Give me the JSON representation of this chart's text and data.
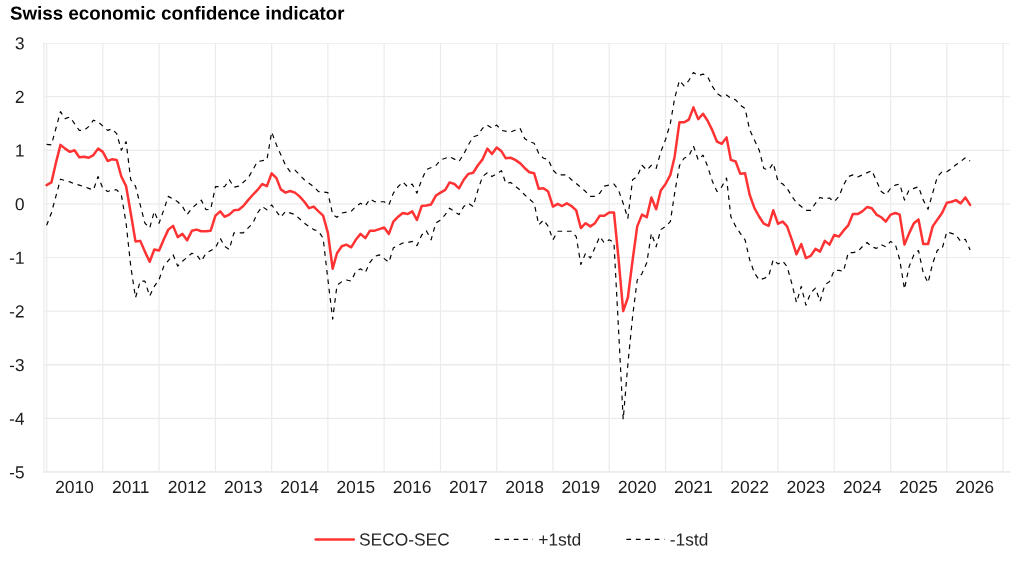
{
  "chart_data": {
    "type": "line",
    "title": "Swiss economic confidence indicator",
    "x": [
      "2010-01",
      "2010-02",
      "2010-03",
      "2010-04",
      "2010-05",
      "2010-06",
      "2010-07",
      "2010-08",
      "2010-09",
      "2010-10",
      "2010-11",
      "2010-12",
      "2011-01",
      "2011-02",
      "2011-03",
      "2011-04",
      "2011-05",
      "2011-06",
      "2011-07",
      "2011-08",
      "2011-09",
      "2011-10",
      "2011-11",
      "2011-12",
      "2012-01",
      "2012-02",
      "2012-03",
      "2012-04",
      "2012-05",
      "2012-06",
      "2012-07",
      "2012-08",
      "2012-09",
      "2012-10",
      "2012-11",
      "2012-12",
      "2013-01",
      "2013-02",
      "2013-03",
      "2013-04",
      "2013-05",
      "2013-06",
      "2013-07",
      "2013-08",
      "2013-09",
      "2013-10",
      "2013-11",
      "2013-12",
      "2014-01",
      "2014-02",
      "2014-03",
      "2014-04",
      "2014-05",
      "2014-06",
      "2014-07",
      "2014-08",
      "2014-09",
      "2014-10",
      "2014-11",
      "2014-12",
      "2015-01",
      "2015-02",
      "2015-03",
      "2015-04",
      "2015-05",
      "2015-06",
      "2015-07",
      "2015-08",
      "2015-09",
      "2015-10",
      "2015-11",
      "2015-12",
      "2016-01",
      "2016-02",
      "2016-03",
      "2016-04",
      "2016-05",
      "2016-06",
      "2016-07",
      "2016-08",
      "2016-09",
      "2016-10",
      "2016-11",
      "2016-12",
      "2017-01",
      "2017-02",
      "2017-03",
      "2017-04",
      "2017-05",
      "2017-06",
      "2017-07",
      "2017-08",
      "2017-09",
      "2017-10",
      "2017-11",
      "2017-12",
      "2018-01",
      "2018-02",
      "2018-03",
      "2018-04",
      "2018-05",
      "2018-06",
      "2018-07",
      "2018-08",
      "2018-09",
      "2018-10",
      "2018-11",
      "2018-12",
      "2019-01",
      "2019-02",
      "2019-03",
      "2019-04",
      "2019-05",
      "2019-06",
      "2019-07",
      "2019-08",
      "2019-09",
      "2019-10",
      "2019-11",
      "2019-12",
      "2020-01",
      "2020-02",
      "2020-03",
      "2020-04",
      "2020-05",
      "2020-06",
      "2020-07",
      "2020-08",
      "2020-09",
      "2020-10",
      "2020-11",
      "2020-12",
      "2021-01",
      "2021-02",
      "2021-03",
      "2021-04",
      "2021-05",
      "2021-06",
      "2021-07",
      "2021-08",
      "2021-09",
      "2021-10",
      "2021-11",
      "2021-12",
      "2022-01",
      "2022-02",
      "2022-03",
      "2022-04",
      "2022-05",
      "2022-06",
      "2022-07",
      "2022-08",
      "2022-09",
      "2022-10",
      "2022-11",
      "2022-12",
      "2023-01",
      "2023-02",
      "2023-03",
      "2023-04",
      "2023-05",
      "2023-06",
      "2023-07",
      "2023-08",
      "2023-09",
      "2023-10",
      "2023-11",
      "2023-12",
      "2024-01",
      "2024-02",
      "2024-03",
      "2024-04",
      "2024-05",
      "2024-06",
      "2024-07",
      "2024-08",
      "2024-09",
      "2024-10",
      "2024-11",
      "2024-12",
      "2025-01",
      "2025-02",
      "2025-03",
      "2025-04",
      "2025-05",
      "2025-06",
      "2025-07",
      "2025-08",
      "2025-09",
      "2025-10",
      "2025-11",
      "2025-12",
      "2026-01",
      "2026-02",
      "2026-03",
      "2026-04",
      "2026-05",
      "2026-06"
    ],
    "series": [
      {
        "name": "SECO-SEC",
        "color": "#ff3333",
        "line_style": "solid",
        "values": [
          0.35,
          0.4,
          0.75,
          1.1,
          1.03,
          0.97,
          1.0,
          0.87,
          0.88,
          0.86,
          0.91,
          1.03,
          0.97,
          0.8,
          0.83,
          0.82,
          0.51,
          0.33,
          -0.17,
          -0.7,
          -0.69,
          -0.89,
          -1.08,
          -0.85,
          -0.87,
          -0.66,
          -0.48,
          -0.41,
          -0.62,
          -0.56,
          -0.68,
          -0.5,
          -0.48,
          -0.51,
          -0.51,
          -0.5,
          -0.22,
          -0.14,
          -0.24,
          -0.2,
          -0.12,
          -0.11,
          -0.04,
          0.07,
          0.17,
          0.26,
          0.37,
          0.33,
          0.57,
          0.48,
          0.27,
          0.21,
          0.24,
          0.21,
          0.14,
          0.04,
          -0.08,
          -0.05,
          -0.14,
          -0.22,
          -0.54,
          -1.21,
          -0.92,
          -0.79,
          -0.76,
          -0.81,
          -0.67,
          -0.56,
          -0.64,
          -0.5,
          -0.5,
          -0.47,
          -0.44,
          -0.56,
          -0.33,
          -0.24,
          -0.17,
          -0.19,
          -0.14,
          -0.3,
          -0.04,
          -0.03,
          -0.01,
          0.15,
          0.21,
          0.26,
          0.4,
          0.37,
          0.29,
          0.45,
          0.56,
          0.58,
          0.72,
          0.83,
          1.03,
          0.93,
          1.05,
          0.98,
          0.85,
          0.86,
          0.82,
          0.76,
          0.67,
          0.59,
          0.57,
          0.28,
          0.29,
          0.23,
          -0.05,
          0.0,
          -0.04,
          0.01,
          -0.04,
          -0.12,
          -0.45,
          -0.36,
          -0.42,
          -0.36,
          -0.22,
          -0.22,
          -0.16,
          -0.16,
          -1.0,
          -2.0,
          -1.75,
          -1.05,
          -0.42,
          -0.2,
          -0.25,
          0.12,
          -0.1,
          0.25,
          0.37,
          0.54,
          0.88,
          1.52,
          1.52,
          1.57,
          1.8,
          1.58,
          1.68,
          1.55,
          1.37,
          1.16,
          1.12,
          1.24,
          0.82,
          0.79,
          0.56,
          0.57,
          0.17,
          -0.08,
          -0.24,
          -0.37,
          -0.41,
          -0.12,
          -0.37,
          -0.33,
          -0.42,
          -0.67,
          -0.94,
          -0.75,
          -1.01,
          -0.97,
          -0.84,
          -0.89,
          -0.69,
          -0.76,
          -0.58,
          -0.61,
          -0.5,
          -0.4,
          -0.19,
          -0.19,
          -0.14,
          -0.06,
          -0.08,
          -0.2,
          -0.25,
          -0.33,
          -0.2,
          -0.17,
          -0.2,
          -0.76,
          -0.55,
          -0.36,
          -0.29,
          -0.75,
          -0.75,
          -0.42,
          -0.29,
          -0.17,
          0.02,
          0.04,
          0.07,
          0.01,
          0.12,
          -0.02
        ]
      },
      {
        "name": "+1std",
        "color": "#000000",
        "line_style": "dashed",
        "x": [
          "2010-01",
          "2010-02",
          "2010-04",
          "2010-05",
          "2010-06",
          "2010-08",
          "2010-09",
          "2010-10",
          "2010-11",
          "2010-12",
          "2011-02",
          "2011-03",
          "2011-04",
          "2011-05",
          "2011-06",
          "2011-07",
          "2011-08",
          "2011-10",
          "2011-11",
          "2011-12",
          "2012-01",
          "2012-02",
          "2012-03",
          "2012-05",
          "2012-06",
          "2012-07",
          "2012-08",
          "2012-10",
          "2012-11",
          "2012-12",
          "2013-01",
          "2013-03",
          "2013-04",
          "2013-05",
          "2013-06",
          "2013-08",
          "2013-10",
          "2013-12",
          "2014-01",
          "2014-02",
          "2014-04",
          "2014-05",
          "2014-06",
          "2014-08",
          "2014-10",
          "2014-11",
          "2015-01",
          "2015-02",
          "2015-03",
          "2015-04",
          "2015-06",
          "2015-07",
          "2015-08",
          "2015-09",
          "2015-10",
          "2015-11",
          "2016-01",
          "2016-02",
          "2016-03",
          "2016-04",
          "2016-05",
          "2016-06",
          "2016-07",
          "2016-08",
          "2016-09",
          "2016-10",
          "2016-12",
          "2017-01",
          "2017-02",
          "2017-03",
          "2017-05",
          "2017-06",
          "2017-07",
          "2017-08",
          "2017-09",
          "2017-10",
          "2017-11",
          "2017-12",
          "2018-01",
          "2018-02",
          "2018-04",
          "2018-06",
          "2018-07",
          "2018-08",
          "2018-09",
          "2018-10",
          "2018-11",
          "2018-12",
          "2019-01",
          "2019-02",
          "2019-04",
          "2019-05",
          "2019-06",
          "2019-08",
          "2019-09",
          "2019-10",
          "2019-11",
          "2019-12",
          "2020-02",
          "2020-03",
          "2020-04",
          "2020-05",
          "2020-06",
          "2020-07",
          "2020-08",
          "2020-09",
          "2020-10",
          "2020-11",
          "2020-12",
          "2021-01",
          "2021-02",
          "2021-03",
          "2021-04",
          "2021-05",
          "2021-06",
          "2021-07",
          "2021-08",
          "2021-09",
          "2021-10",
          "2021-11",
          "2021-12",
          "2022-01",
          "2022-02",
          "2022-03",
          "2022-04",
          "2022-05",
          "2022-06",
          "2022-07",
          "2022-08",
          "2022-09",
          "2022-10",
          "2022-11",
          "2022-12",
          "2023-01",
          "2023-02",
          "2023-03",
          "2023-04",
          "2023-05",
          "2023-06",
          "2023-07",
          "2023-08",
          "2023-09",
          "2023-10",
          "2023-11",
          "2023-12",
          "2024-01",
          "2024-02",
          "2024-03",
          "2024-04",
          "2024-05",
          "2024-06",
          "2024-07",
          "2024-09",
          "2024-10",
          "2024-11",
          "2024-12",
          "2025-01",
          "2025-02",
          "2025-03",
          "2025-04",
          "2025-05",
          "2025-06",
          "2025-07",
          "2025-08",
          "2025-09",
          "2025-10",
          "2025-11",
          "2025-12",
          "2026-01",
          "2026-02",
          "2026-03",
          "2026-04",
          "2026-05",
          "2026-06"
        ],
        "values": [
          1.11,
          1.1,
          1.72,
          1.59,
          1.62,
          1.37,
          1.37,
          1.44,
          1.56,
          1.53,
          1.37,
          1.4,
          1.31,
          1.0,
          1.16,
          0.45,
          0.33,
          -0.36,
          -0.45,
          -0.14,
          -0.36,
          -0.11,
          0.14,
          0.04,
          -0.05,
          -0.2,
          -0.08,
          0.07,
          -0.11,
          -0.1,
          0.32,
          0.32,
          0.45,
          0.31,
          0.33,
          0.48,
          0.79,
          0.82,
          1.34,
          1.1,
          0.72,
          0.6,
          0.63,
          0.45,
          0.32,
          0.23,
          0.21,
          -0.2,
          -0.25,
          -0.17,
          -0.14,
          -0.05,
          0.01,
          -0.04,
          0.09,
          0.04,
          0.04,
          -0.02,
          0.2,
          0.32,
          0.41,
          0.32,
          0.37,
          0.2,
          0.45,
          0.64,
          0.71,
          0.82,
          0.85,
          0.88,
          0.79,
          0.93,
          1.1,
          1.25,
          1.28,
          1.41,
          1.47,
          1.41,
          1.47,
          1.37,
          1.34,
          1.41,
          1.22,
          1.16,
          1.13,
          0.94,
          0.85,
          0.83,
          0.63,
          0.54,
          0.54,
          0.45,
          0.38,
          0.23,
          0.14,
          0.14,
          0.2,
          0.33,
          0.37,
          0.26,
          0.01,
          -0.27,
          0.45,
          0.51,
          0.72,
          0.63,
          0.72,
          0.66,
          0.97,
          1.2,
          1.5,
          1.97,
          2.3,
          2.2,
          2.3,
          2.45,
          2.39,
          2.42,
          2.37,
          2.19,
          2.06,
          2.0,
          2.03,
          1.97,
          1.94,
          1.84,
          1.78,
          1.38,
          1.19,
          1.0,
          0.66,
          0.63,
          0.76,
          0.42,
          0.37,
          0.29,
          0.14,
          0.02,
          -0.05,
          -0.12,
          -0.12,
          0.01,
          0.12,
          0.09,
          0.11,
          0.04,
          0.14,
          0.35,
          0.51,
          0.54,
          0.5,
          0.54,
          0.62,
          0.43,
          0.23,
          0.17,
          0.29,
          0.35,
          0.37,
          0.07,
          0.26,
          0.29,
          0.32,
          0.07,
          -0.1,
          0.2,
          0.51,
          0.6,
          0.6,
          0.66,
          0.73,
          0.79,
          0.86,
          0.8
        ]
      },
      {
        "name": "-1std",
        "color": "#000000",
        "line_style": "dashed",
        "x": [
          "2010-01",
          "2010-02",
          "2010-04",
          "2010-06",
          "2010-07",
          "2010-08",
          "2010-10",
          "2010-11",
          "2010-12",
          "2011-01",
          "2011-02",
          "2011-03",
          "2011-04",
          "2011-05",
          "2011-06",
          "2011-07",
          "2011-08",
          "2011-09",
          "2011-10",
          "2011-11",
          "2011-12",
          "2012-01",
          "2012-02",
          "2012-04",
          "2012-05",
          "2012-06",
          "2012-08",
          "2012-09",
          "2012-10",
          "2012-11",
          "2013-01",
          "2013-02",
          "2013-03",
          "2013-04",
          "2013-05",
          "2013-07",
          "2013-09",
          "2013-10",
          "2013-11",
          "2013-12",
          "2014-01",
          "2014-03",
          "2014-04",
          "2014-06",
          "2014-08",
          "2014-10",
          "2014-11",
          "2014-12",
          "2015-01",
          "2015-02",
          "2015-03",
          "2015-04",
          "2015-05",
          "2015-06",
          "2015-07",
          "2015-08",
          "2015-09",
          "2015-10",
          "2015-11",
          "2015-12",
          "2016-02",
          "2016-03",
          "2016-05",
          "2016-06",
          "2016-07",
          "2016-08",
          "2016-09",
          "2016-10",
          "2016-11",
          "2016-12",
          "2017-01",
          "2017-02",
          "2017-03",
          "2017-05",
          "2017-06",
          "2017-07",
          "2017-08",
          "2017-09",
          "2017-10",
          "2017-11",
          "2017-12",
          "2018-02",
          "2018-03",
          "2018-04",
          "2018-06",
          "2018-07",
          "2018-09",
          "2018-10",
          "2018-11",
          "2018-12",
          "2019-01",
          "2019-02",
          "2019-03",
          "2019-05",
          "2019-06",
          "2019-07",
          "2019-08",
          "2019-09",
          "2019-11",
          "2019-12",
          "2020-01",
          "2020-02",
          "2020-03",
          "2020-04",
          "2020-05",
          "2020-06",
          "2020-07",
          "2020-08",
          "2020-09",
          "2020-10",
          "2020-11",
          "2020-12",
          "2021-01",
          "2021-02",
          "2021-03",
          "2021-04",
          "2021-05",
          "2021-06",
          "2021-07",
          "2021-08",
          "2021-09",
          "2021-10",
          "2021-11",
          "2021-12",
          "2022-01",
          "2022-02",
          "2022-03",
          "2022-04",
          "2022-05",
          "2022-06",
          "2022-07",
          "2022-08",
          "2022-09",
          "2022-10",
          "2022-11",
          "2022-12",
          "2023-01",
          "2023-02",
          "2023-03",
          "2023-04",
          "2023-05",
          "2023-06",
          "2023-07",
          "2023-08",
          "2023-09",
          "2023-10",
          "2023-11",
          "2023-12",
          "2024-01",
          "2024-02",
          "2024-03",
          "2024-04",
          "2024-05",
          "2024-06",
          "2024-07",
          "2024-08",
          "2024-09",
          "2024-10",
          "2024-11",
          "2024-12",
          "2025-01",
          "2025-02",
          "2025-03",
          "2025-04",
          "2025-05",
          "2025-06",
          "2025-07",
          "2025-08",
          "2025-09",
          "2025-10",
          "2025-11",
          "2025-12",
          "2026-01",
          "2026-02",
          "2026-03",
          "2026-04",
          "2026-05",
          "2026-06"
        ],
        "values": [
          -0.4,
          -0.17,
          0.46,
          0.41,
          0.37,
          0.35,
          0.29,
          0.26,
          0.51,
          0.29,
          0.23,
          0.26,
          0.26,
          0.17,
          -0.36,
          -1.16,
          -1.75,
          -1.44,
          -1.44,
          -1.72,
          -1.54,
          -1.41,
          -1.16,
          -0.95,
          -1.16,
          -1.07,
          -0.92,
          -0.95,
          -1.07,
          -0.92,
          -0.82,
          -0.64,
          -0.79,
          -0.85,
          -0.54,
          -0.54,
          -0.36,
          -0.17,
          -0.05,
          -0.11,
          -0.02,
          -0.25,
          -0.14,
          -0.2,
          -0.36,
          -0.48,
          -0.51,
          -0.64,
          -1.41,
          -2.15,
          -1.52,
          -1.45,
          -1.42,
          -1.44,
          -1.26,
          -1.21,
          -1.28,
          -1.09,
          -0.98,
          -0.95,
          -1.09,
          -0.82,
          -0.73,
          -0.72,
          -0.7,
          -0.78,
          -0.58,
          -0.5,
          -0.67,
          -0.36,
          -0.3,
          -0.2,
          -0.08,
          -0.2,
          -0.05,
          0.01,
          -0.05,
          0.26,
          0.51,
          0.58,
          0.51,
          0.62,
          0.38,
          0.4,
          0.26,
          0.17,
          0.01,
          -0.39,
          -0.3,
          -0.42,
          -0.67,
          -0.51,
          -0.51,
          -0.51,
          -0.61,
          -1.13,
          -0.92,
          -1.01,
          -0.61,
          -0.73,
          -0.67,
          -0.72,
          -2.3,
          -4.02,
          -3.0,
          -2.1,
          -1.42,
          -1.3,
          -1.1,
          -0.55,
          -0.8,
          -0.48,
          -0.42,
          -0.33,
          0.2,
          0.71,
          0.85,
          0.89,
          1.08,
          0.82,
          0.91,
          0.7,
          0.42,
          0.23,
          0.32,
          0.48,
          -0.24,
          -0.42,
          -0.55,
          -0.67,
          -1.04,
          -1.29,
          -1.42,
          -1.39,
          -1.35,
          -1.04,
          -1.12,
          -1.07,
          -1.17,
          -1.49,
          -1.84,
          -1.54,
          -1.89,
          -1.66,
          -1.57,
          -1.82,
          -1.51,
          -1.45,
          -1.24,
          -1.24,
          -1.26,
          -0.91,
          -0.91,
          -0.89,
          -0.8,
          -0.72,
          -0.8,
          -0.83,
          -0.76,
          -0.8,
          -0.7,
          -0.76,
          -1.04,
          -1.59,
          -1.17,
          -0.95,
          -0.87,
          -1.29,
          -1.47,
          -1.11,
          -0.86,
          -0.84,
          -0.52,
          -0.55,
          -0.58,
          -0.7,
          -0.66,
          -0.86
        ]
      }
    ],
    "xlim": [
      "2009-12-15",
      "2027-02-15"
    ],
    "xticks": [
      {
        "value": "2010-01-01",
        "label": null
      },
      {
        "value": "2010-07-01",
        "label": "2010"
      },
      {
        "value": "2011-01-01",
        "label": null
      },
      {
        "value": "2011-07-01",
        "label": "2011"
      },
      {
        "value": "2012-01-01",
        "label": null
      },
      {
        "value": "2012-07-01",
        "label": "2012"
      },
      {
        "value": "2013-01-01",
        "label": null
      },
      {
        "value": "2013-07-01",
        "label": "2013"
      },
      {
        "value": "2014-01-01",
        "label": null
      },
      {
        "value": "2014-07-01",
        "label": "2014"
      },
      {
        "value": "2015-01-01",
        "label": null
      },
      {
        "value": "2015-07-01",
        "label": "2015"
      },
      {
        "value": "2016-01-01",
        "label": null
      },
      {
        "value": "2016-07-01",
        "label": "2016"
      },
      {
        "value": "2017-01-01",
        "label": null
      },
      {
        "value": "2017-07-01",
        "label": "2017"
      },
      {
        "value": "2018-01-01",
        "label": null
      },
      {
        "value": "2018-07-01",
        "label": "2018"
      },
      {
        "value": "2019-01-01",
        "label": null
      },
      {
        "value": "2019-07-01",
        "label": "2019"
      },
      {
        "value": "2020-01-01",
        "label": null
      },
      {
        "value": "2020-07-01",
        "label": "2020"
      },
      {
        "value": "2021-01-01",
        "label": null
      },
      {
        "value": "2021-07-01",
        "label": "2021"
      },
      {
        "value": "2022-01-01",
        "label": null
      },
      {
        "value": "2022-07-01",
        "label": "2022"
      },
      {
        "value": "2023-01-01",
        "label": null
      },
      {
        "value": "2023-07-01",
        "label": "2023"
      },
      {
        "value": "2024-01-01",
        "label": null
      },
      {
        "value": "2024-07-01",
        "label": "2024"
      },
      {
        "value": "2025-01-01",
        "label": null
      },
      {
        "value": "2025-07-01",
        "label": "2025"
      },
      {
        "value": "2026-01-01",
        "label": null
      },
      {
        "value": "2026-07-01",
        "label": "2026"
      },
      {
        "value": "2027-01-01",
        "label": null
      }
    ],
    "ylim": [
      -5,
      3
    ],
    "yticks": [
      -5,
      -4,
      -3,
      -2,
      -1,
      0,
      1,
      2,
      3
    ],
    "grid": true,
    "legend": "bottom"
  }
}
